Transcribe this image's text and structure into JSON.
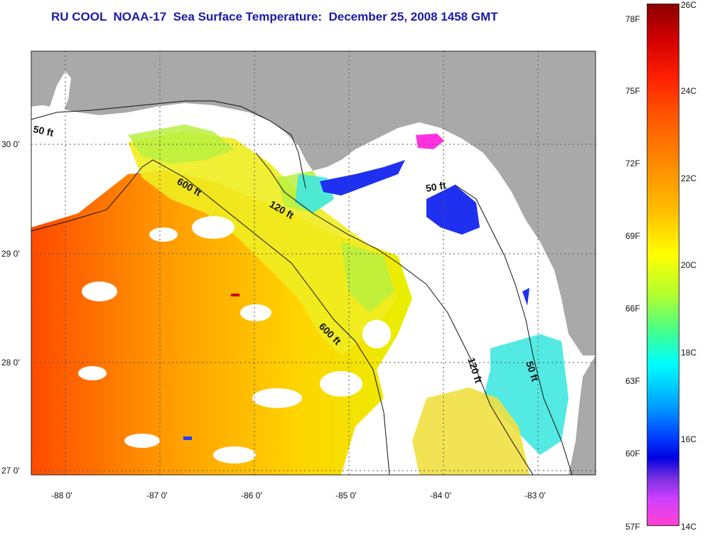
{
  "title": "RU COOL  NOAA-17  Sea Surface Temperature:  December 25, 2008 1458 GMT",
  "map": {
    "lat_ticks": [
      "30 0'",
      "29 0'",
      "28 0'",
      "27 0'"
    ],
    "lon_ticks": [
      "-88 0'",
      "-87 0'",
      "-86 0'",
      "-85 0'",
      "-84 0'",
      "-83 0'"
    ],
    "contour_labels": [
      "50 ft",
      "600 ft",
      "120 ft",
      "50 ft",
      "600 ft",
      "120 ft",
      "50 ft"
    ],
    "colors": {
      "land": "#a9a9a9",
      "cloud": "#ffffff",
      "warm": "#ff6a00",
      "mid": "#ffd000",
      "cool": "#00e0ff",
      "cold": "#0030ff",
      "coldest": "#ff30e0"
    }
  },
  "colorbar": {
    "fahrenheit": [
      "78F",
      "75F",
      "72F",
      "69F",
      "66F",
      "63F",
      "60F",
      "57F"
    ],
    "celsius": [
      "26C",
      "24C",
      "22C",
      "20C",
      "18C",
      "16C",
      "14C"
    ],
    "range_c": [
      14,
      26
    ],
    "range_f": [
      57,
      78
    ]
  }
}
